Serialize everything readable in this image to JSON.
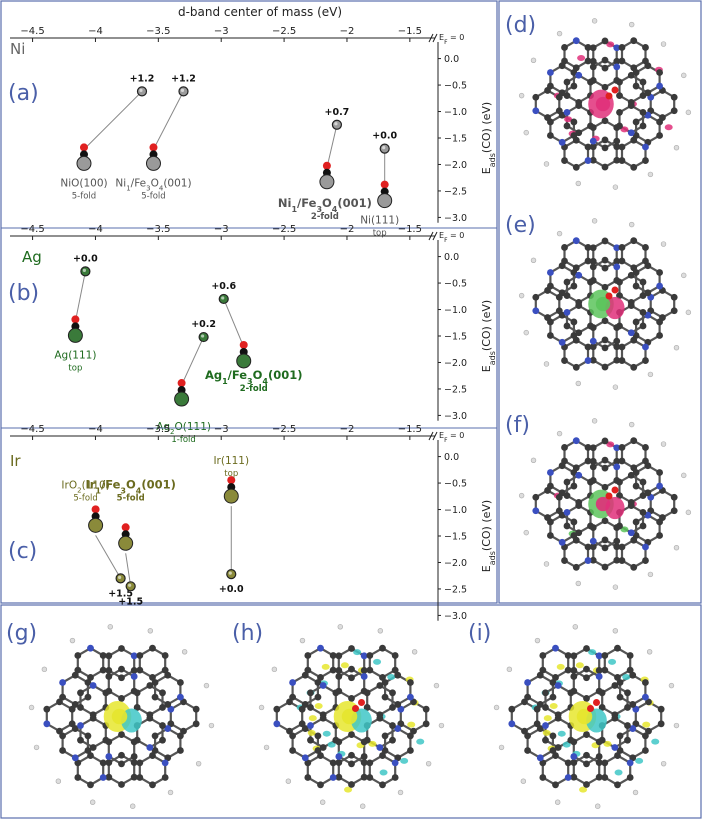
{
  "figure": {
    "border_color": "#5a6fae",
    "panel_label_color": "#4a5fa8"
  },
  "chart_data": [
    {
      "type": "scatter",
      "panel": "(a)",
      "metal": "Ni",
      "metal_color": "#666666",
      "point_color": "#9a9a9a",
      "xlabel": "d-band center of mass (eV)",
      "ylabel": "E_ads(CO) (eV)",
      "ylabel_main": "E",
      "ylabel_sub": "ads",
      "ylabel_tail": "(CO) (eV)",
      "ef_label": "E_F = 0",
      "xlim": [
        -4.6,
        -1.3
      ],
      "ylim": [
        0.2,
        -3.2
      ],
      "xticks": [
        -4.5,
        -4,
        -3.5,
        -3,
        -2.5,
        -2,
        -1.5
      ],
      "xtick_labels": [
        "-4.5",
        "-4",
        "-3.5",
        "-3",
        "-2.5",
        "-2",
        "-1.5"
      ],
      "yticks": [
        0.0,
        -0.5,
        -1.0,
        -1.5,
        -2.0,
        -2.5,
        -3.0
      ],
      "ytick_labels": [
        "0.0",
        "-0.5",
        "-1.0",
        "-1.5",
        "-2.0",
        "-2.5",
        "-3.0"
      ],
      "points": [
        {
          "x": -3.63,
          "y": -0.62,
          "label": "+1.2",
          "site": "NiO(100)",
          "site_sub": "5-fold"
        },
        {
          "x": -3.3,
          "y": -0.62,
          "label": "+1.2",
          "site": "Ni1/Fe3O4(001)",
          "site_sub": "5-fold"
        },
        {
          "x": -2.08,
          "y": -1.25,
          "label": "+0.7",
          "site": "Ni1/Fe3O4(001)",
          "site_sub": "2-fold"
        },
        {
          "x": -1.7,
          "y": -1.7,
          "label": "+0.0",
          "site": "Ni(111)",
          "site_sub": "top"
        }
      ]
    },
    {
      "type": "scatter",
      "panel": "(b)",
      "metal": "Ag",
      "metal_color": "#1f6b1f",
      "point_color": "#3a7a3a",
      "ef_label": "E_F = 0",
      "xlim": [
        -4.6,
        -1.3
      ],
      "ylim": [
        0.2,
        -3.2
      ],
      "xticks": [
        -4.5,
        -4,
        -3.5,
        -3,
        -2.5,
        -2,
        -1.5
      ],
      "xtick_labels": [
        "-4.5",
        "-4",
        "-3.5",
        "-3",
        "-2.5",
        "-2",
        "-1.5"
      ],
      "yticks": [
        0.0,
        -0.5,
        -1.0,
        -1.5,
        -2.0,
        -2.5,
        -3.0
      ],
      "ytick_labels": [
        "0.0",
        "-0.5",
        "-1.0",
        "-1.5",
        "-2.0",
        "-2.5",
        "-3.0"
      ],
      "ylabel_main": "E",
      "ylabel_sub": "ads",
      "ylabel_tail": "(CO) (eV)",
      "points": [
        {
          "x": -4.08,
          "y": -0.28,
          "label": "+0.0",
          "site": "Ag(111)",
          "site_sub": "top"
        },
        {
          "x": -3.14,
          "y": -1.52,
          "label": "+0.2",
          "site": "Ag2O(111)",
          "site_sub": "1-fold"
        },
        {
          "x": -2.98,
          "y": -0.8,
          "label": "+0.6",
          "site": "Ag1/Fe3O4(001)",
          "site_sub": "2-fold"
        }
      ]
    },
    {
      "type": "scatter",
      "panel": "(c)",
      "metal": "Ir",
      "metal_color": "#6b6b1f",
      "point_color": "#8a8a3a",
      "ef_label": "E_F = 0",
      "xlim": [
        -4.6,
        -1.3
      ],
      "ylim": [
        0.2,
        -3.2
      ],
      "xticks": [
        -4.5,
        -4,
        -3.5,
        -3,
        -2.5,
        -2,
        -1.5
      ],
      "xtick_labels": [
        "-4.5",
        "-4",
        "-3.5",
        "-3",
        "-2.5",
        "-2",
        "-1.5"
      ],
      "yticks": [
        0.0,
        -0.5,
        -1.0,
        -1.5,
        -2.0,
        -2.5,
        -3.0
      ],
      "ytick_labels": [
        "0.0",
        "-0.5",
        "-1.0",
        "-1.5",
        "-2.0",
        "-2.5",
        "-3.0"
      ],
      "ylabel_main": "E",
      "ylabel_sub": "ads",
      "ylabel_tail": "(CO) (eV)",
      "points": [
        {
          "x": -3.8,
          "y": -2.3,
          "label": "+1.5",
          "site": "IrO2(110)",
          "site_sub": "5-fold"
        },
        {
          "x": -3.72,
          "y": -2.45,
          "label": "+1.5",
          "site": "Ir1/Fe3O4(001)",
          "site_sub": "5-fold"
        },
        {
          "x": -2.92,
          "y": -2.22,
          "label": "+0.0",
          "site": "Ir(111)",
          "site_sub": "top"
        }
      ]
    }
  ],
  "structures": [
    {
      "panel": "(d)",
      "density_colors": [
        "#e0307a"
      ],
      "center_color": "#e0307a"
    },
    {
      "panel": "(e)",
      "density_colors": [
        "#e0307a",
        "#5cc45c"
      ],
      "center_color": "#5cc45c"
    },
    {
      "panel": "(f)",
      "density_colors": [
        "#e0307a",
        "#5cc45c"
      ],
      "center_color": "#e0307a"
    },
    {
      "panel": "(g)",
      "density_colors": [
        "#3fc7c7",
        "#e6e62e"
      ],
      "center_color": "#e6e62e"
    },
    {
      "panel": "(h)",
      "density_colors": [
        "#3fc7c7",
        "#e6e62e"
      ],
      "center_color": "#e6e62e"
    },
    {
      "panel": "(i)",
      "density_colors": [
        "#3fc7c7",
        "#e6e62e"
      ],
      "center_color": "#e6e62e"
    }
  ],
  "colors": {
    "axis": "#222222",
    "carbon": "#3a3a3a",
    "nitrogen": "#3a4fc0",
    "hydrogen": "#dddddd",
    "oxygen": "#e02020"
  }
}
